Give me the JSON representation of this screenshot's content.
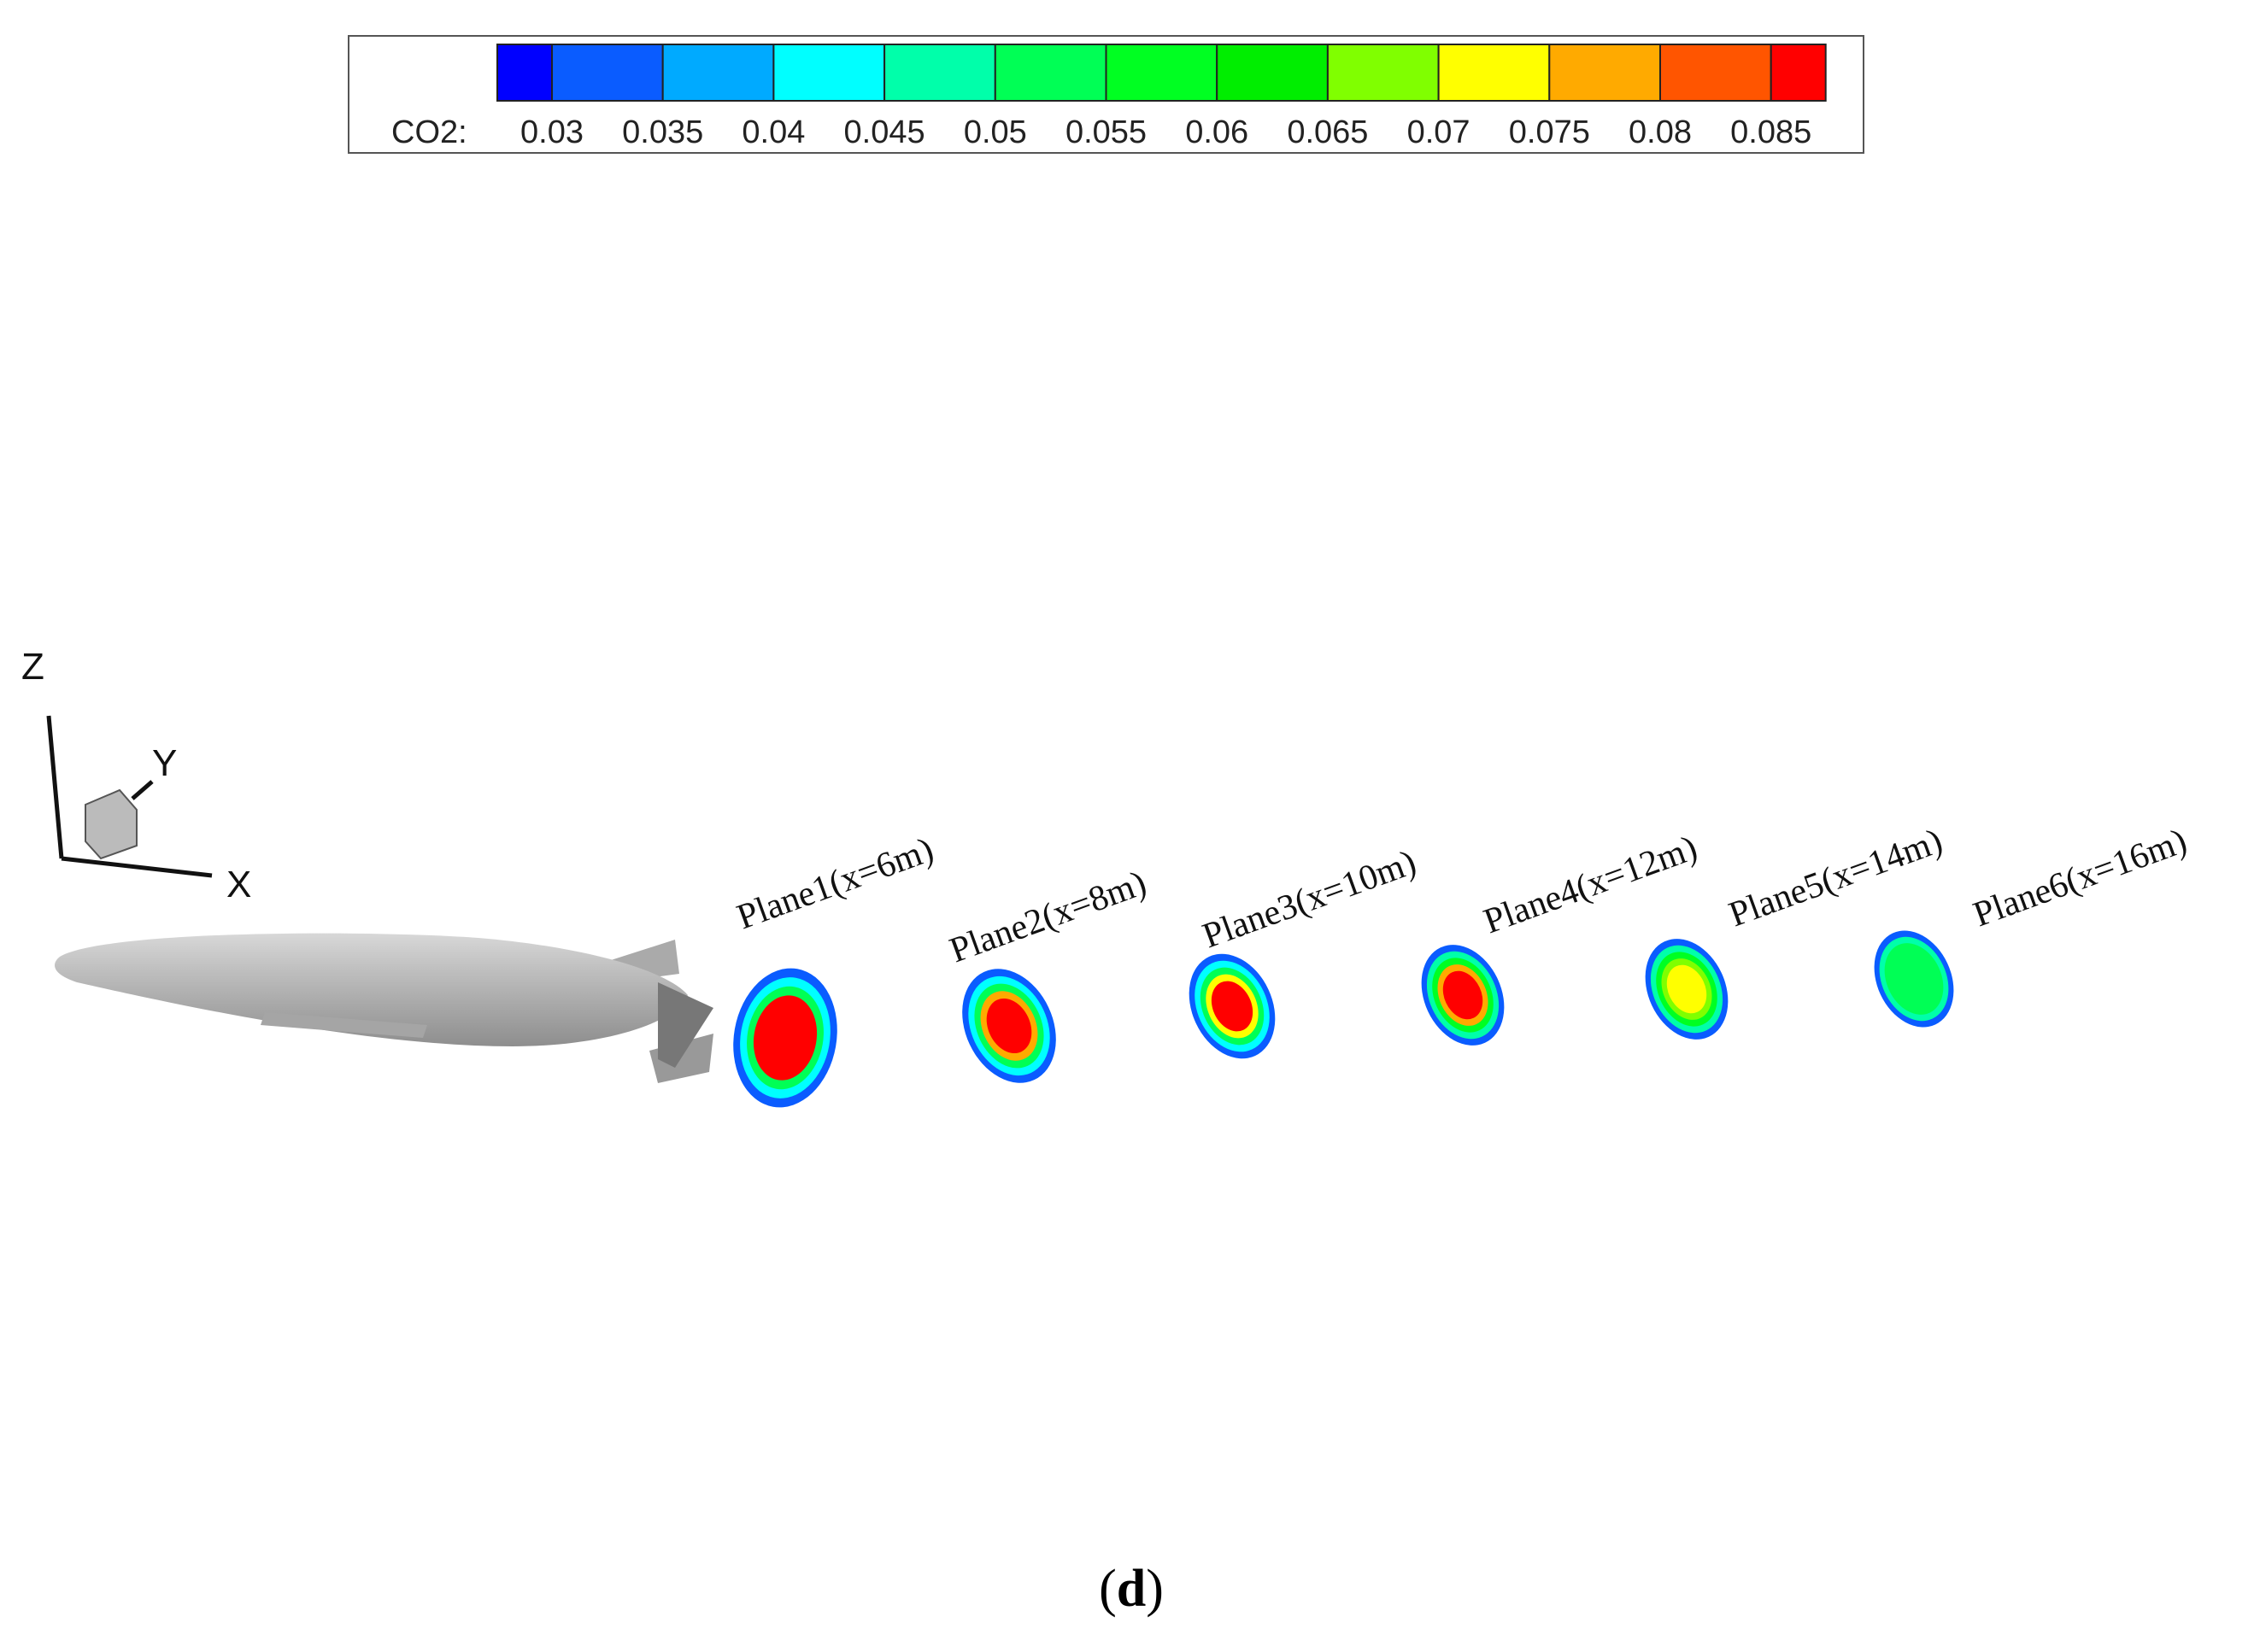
{
  "colorbar": {
    "label": "CO2:",
    "ticks": [
      0.03,
      0.035,
      0.04,
      0.045,
      0.05,
      0.055,
      0.06,
      0.065,
      0.07,
      0.075,
      0.08,
      0.085
    ],
    "colors": [
      "#0000ff",
      "#0a5cff",
      "#00aaff",
      "#00ffff",
      "#00ffaa",
      "#00ff55",
      "#00ff22",
      "#00ee00",
      "#80ff00",
      "#ffff00",
      "#ffaa00",
      "#ff5500",
      "#ff0000"
    ]
  },
  "axes": {
    "z": "Z",
    "y": "Y",
    "x": "X"
  },
  "planes": [
    "Plane1(x=6m)",
    "Plane2(x=8m)",
    "Plane3(x=10m)",
    "Plane4(x=12m)",
    "Plane5(x=14m)",
    "Plane6(x=16m)"
  ],
  "caption": {
    "open": "(",
    "letter": "d",
    "close": ")"
  }
}
